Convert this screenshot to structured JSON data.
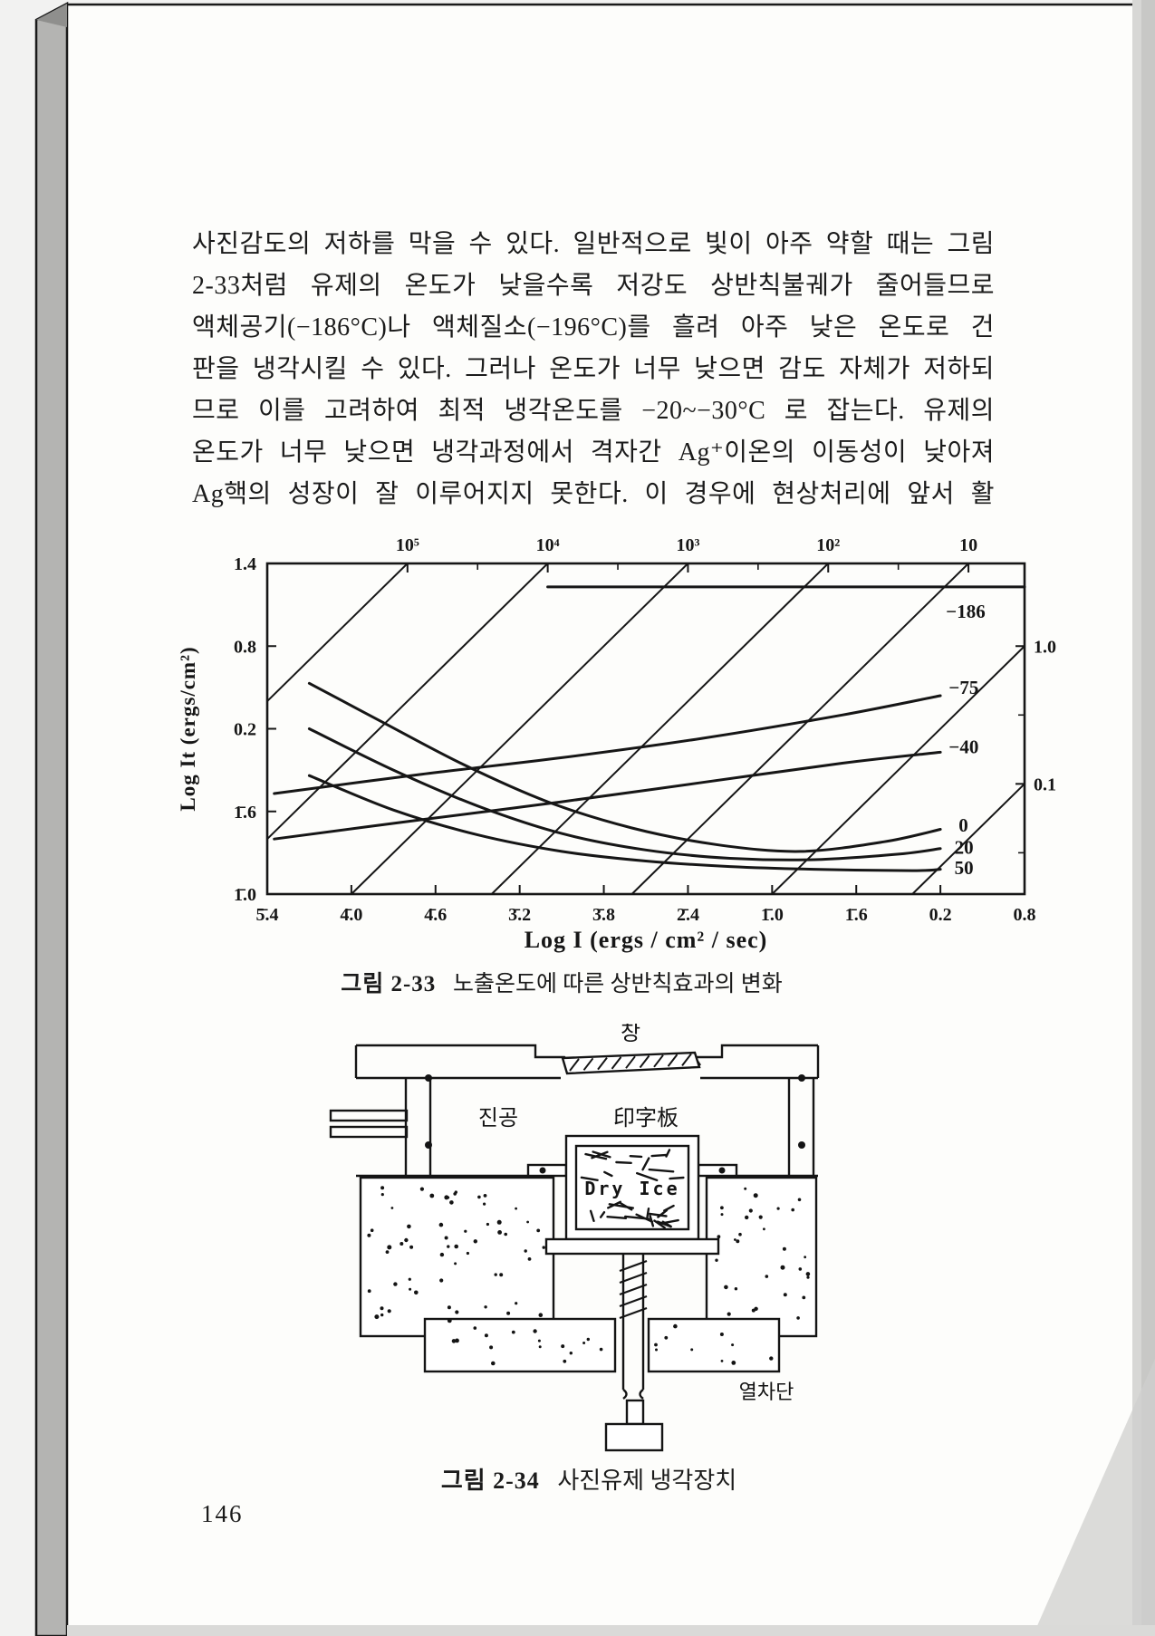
{
  "page": {
    "number": "146",
    "body_lines": [
      "사진감도의 저하를 막을 수 있다. 일반적으로 빛이 아주 약할 때는 그림",
      "2-33처럼 유제의 온도가 낮을수록 저강도 상반칙불궤가 줄어들므로",
      "액체공기(−186°C)나 액체질소(−196°C)를 흘려 아주 낮은 온도로 건",
      "판을 냉각시킬 수 있다. 그러나 온도가 너무 낮으면 감도 자체가 저하되",
      "므로 이를 고려하여 최적 냉각온도를 −20~−30°C 로 잡는다. 유제의",
      "온도가 너무 낮으면 냉각과정에서 격자간 Ag⁺이온의 이동성이 낮아져",
      "Ag핵의 성장이 잘 이루어지지 못한다. 이 경우에 현상처리에 앞서 활"
    ]
  },
  "figure33": {
    "caption_prefix": "그림 2-33",
    "caption": "노출온도에 따른 상반칙효과의 변화"
  },
  "chart_data": {
    "type": "line",
    "title": "그림 2-33 노출온도에 따른 상반칙효과의 변화",
    "xlabel": "Log I (ergs / cm² / sec)",
    "ylabel": "Log It (ergs/cm²)",
    "xlim": [
      -4.6,
      0.8
    ],
    "ylim": [
      -1.0,
      1.4
    ],
    "grid": false,
    "x_ticks": {
      "values": [
        -4.6,
        -4.0,
        -3.4,
        -2.8,
        -2.2,
        -1.6,
        -1.0,
        -0.4,
        0.2,
        0.8
      ],
      "labels": [
        "5̄.4",
        "4̄.0",
        "4̄.6",
        "3̄.2",
        "3̄.8",
        "2̄.4",
        "1̄.0",
        "1̄.6",
        "0.2",
        "0.8"
      ]
    },
    "y_ticks": {
      "values": [
        1.4,
        0.8,
        0.2,
        -0.4,
        -1.0
      ],
      "labels": [
        "1.4",
        "0.8",
        "0.2",
        "1̄.6",
        "1̄.0"
      ]
    },
    "top_axis_time_labels": {
      "log_t": [
        5,
        4,
        3,
        2,
        1
      ],
      "labels": [
        "10⁵",
        "10⁴",
        "10³",
        "10²",
        "10"
      ]
    },
    "right_axis_time_labels": {
      "log_t": [
        0,
        -1
      ],
      "labels": [
        "1.0",
        "0.1"
      ]
    },
    "iso_time_lines_log_t": [
      5,
      4,
      3,
      2,
      1,
      0,
      -1
    ],
    "temperature_series": [
      {
        "name": "-186",
        "label": "−186",
        "label_at": [
          0.24,
          1.05
        ],
        "points": [
          [
            -2.6,
            1.23
          ],
          [
            0.8,
            1.23
          ]
        ]
      },
      {
        "name": "-75",
        "label": "−75",
        "label_at": [
          0.26,
          0.5
        ],
        "points": [
          [
            -4.55,
            -0.27
          ],
          [
            -3.5,
            -0.13
          ],
          [
            -2.5,
            -0.01
          ],
          [
            -1.5,
            0.13
          ],
          [
            -0.5,
            0.3
          ],
          [
            0.2,
            0.44
          ]
        ]
      },
      {
        "name": "-40",
        "label": "−40",
        "label_at": [
          0.26,
          0.07
        ],
        "points": [
          [
            -4.55,
            -0.6
          ],
          [
            -3.5,
            -0.46
          ],
          [
            -2.5,
            -0.33
          ],
          [
            -1.5,
            -0.19
          ],
          [
            -0.5,
            -0.05
          ],
          [
            0.2,
            0.03
          ]
        ]
      },
      {
        "name": "0",
        "label": "0",
        "label_at": [
          0.33,
          -0.5
        ],
        "points": [
          [
            -4.3,
            0.53
          ],
          [
            -3.8,
            0.26
          ],
          [
            -3.2,
            -0.06
          ],
          [
            -2.6,
            -0.33
          ],
          [
            -2.0,
            -0.52
          ],
          [
            -1.4,
            -0.64
          ],
          [
            -0.8,
            -0.69
          ],
          [
            -0.2,
            -0.62
          ],
          [
            0.2,
            -0.53
          ]
        ]
      },
      {
        "name": "20",
        "label": "20",
        "label_at": [
          0.3,
          -0.66
        ],
        "points": [
          [
            -4.3,
            0.2
          ],
          [
            -3.7,
            -0.1
          ],
          [
            -3.1,
            -0.36
          ],
          [
            -2.5,
            -0.56
          ],
          [
            -1.9,
            -0.68
          ],
          [
            -1.3,
            -0.74
          ],
          [
            -0.7,
            -0.75
          ],
          [
            -0.1,
            -0.71
          ],
          [
            0.2,
            -0.67
          ]
        ]
      },
      {
        "name": "50",
        "label": "50",
        "label_at": [
          0.3,
          -0.81
        ],
        "points": [
          [
            -4.3,
            -0.14
          ],
          [
            -3.7,
            -0.39
          ],
          [
            -3.1,
            -0.57
          ],
          [
            -2.5,
            -0.69
          ],
          [
            -1.9,
            -0.76
          ],
          [
            -1.3,
            -0.8
          ],
          [
            -0.7,
            -0.82
          ],
          [
            0.0,
            -0.83
          ],
          [
            0.2,
            -0.82
          ]
        ]
      }
    ]
  },
  "figure34": {
    "caption_prefix": "그림 2-34",
    "caption": "사진유제 냉각장치",
    "labels": {
      "window": "창",
      "vacuum": "진공",
      "plate": "印字板",
      "dry_ice": "Dry Ice",
      "heat_shield": "열차단"
    }
  },
  "colors": {
    "ink": "#161616",
    "paper": "#fdfdfb",
    "page_edge": "#b4b4b2",
    "outer": "#f2f2f1"
  }
}
